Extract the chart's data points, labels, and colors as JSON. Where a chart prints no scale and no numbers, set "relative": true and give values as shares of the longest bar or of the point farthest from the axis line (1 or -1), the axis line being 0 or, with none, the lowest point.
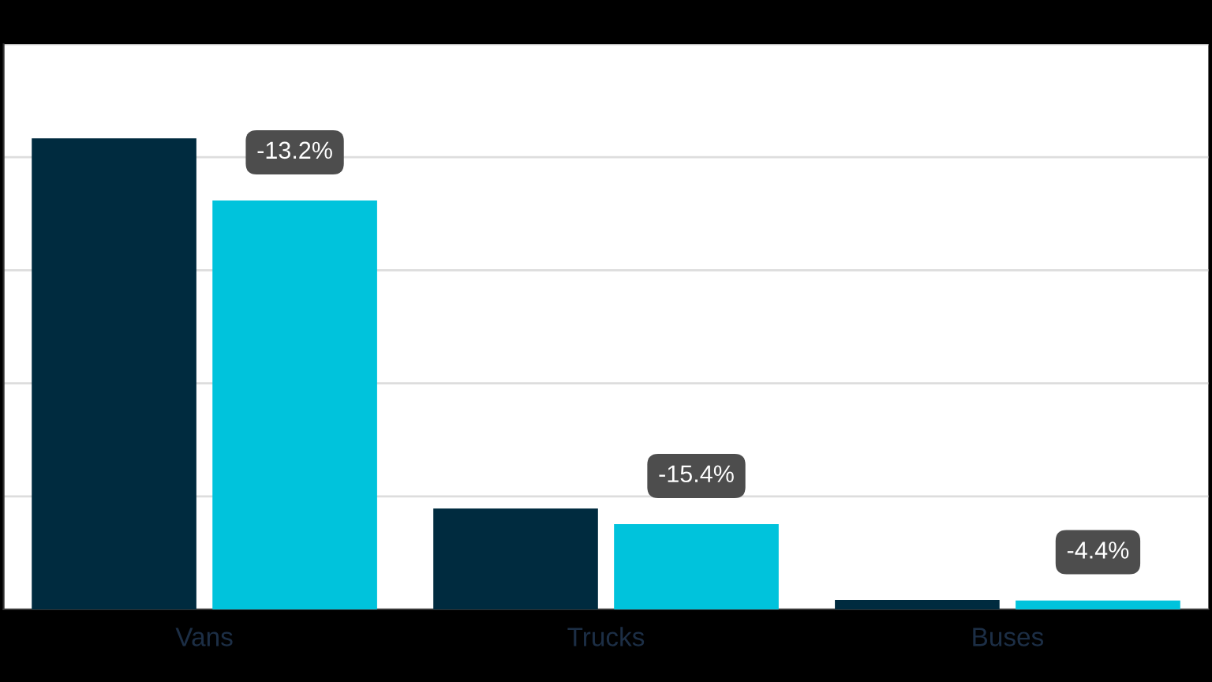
{
  "chart_data": {
    "type": "bar",
    "relative": true,
    "categories": [
      "Vans",
      "Trucks",
      "Buses"
    ],
    "series": [
      {
        "color": "#002b3f",
        "values": [
          1,
          0.214,
          0.02
        ]
      },
      {
        "color": "#00c3dc",
        "values": [
          0.868,
          0.181,
          0.019
        ]
      }
    ],
    "annotations": [
      "-13.2%",
      "-15.4%",
      "-4.4%"
    ],
    "grid": "y",
    "tick_labels": "x",
    "legend": false
  }
}
